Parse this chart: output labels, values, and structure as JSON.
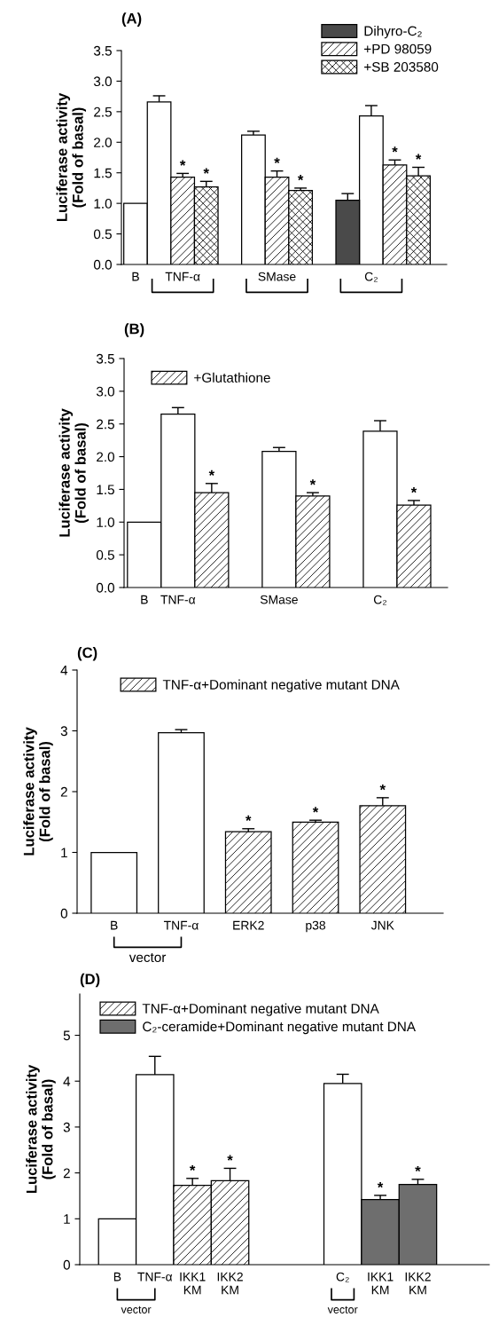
{
  "chart_data": [
    {
      "type": "bar",
      "title": "(A)",
      "ylabel": "Luciferase activity\n(Fold of basal)",
      "categories": [
        "B",
        null,
        "TNF-α",
        null,
        null,
        null,
        "SMase",
        null,
        null,
        null,
        "C₂",
        null,
        null
      ],
      "series": [
        {
          "color": "#ffffff",
          "values": [
            1.0,
            2.66,
            null,
            null,
            null,
            2.12,
            null,
            null,
            null,
            null,
            2.43,
            null,
            null
          ],
          "errors": [
            null,
            0.1,
            null,
            null,
            null,
            0.06,
            null,
            null,
            null,
            null,
            0.17,
            null,
            null
          ]
        },
        {
          "name": "Dihyro-C₂",
          "color": "#4a4a4a",
          "values": [
            null,
            null,
            null,
            null,
            null,
            null,
            null,
            null,
            null,
            1.05,
            null,
            null,
            null
          ],
          "errors": [
            null,
            null,
            null,
            null,
            null,
            null,
            null,
            null,
            null,
            0.11,
            null,
            null,
            null
          ]
        },
        {
          "name": "+PD 98059",
          "color": "#000000",
          "values": [
            null,
            null,
            1.43,
            null,
            null,
            null,
            1.43,
            null,
            null,
            null,
            null,
            1.63,
            null
          ],
          "errors": [
            null,
            null,
            0.06,
            null,
            null,
            null,
            0.1,
            null,
            null,
            null,
            null,
            0.08,
            null
          ],
          "value_labels": [
            null,
            null,
            "*",
            null,
            null,
            null,
            "*",
            null,
            null,
            null,
            null,
            "*",
            null
          ]
        },
        {
          "name": "+SB 203580",
          "color": "#000000",
          "values": [
            null,
            null,
            null,
            1.27,
            null,
            null,
            null,
            1.21,
            null,
            null,
            null,
            null,
            1.45
          ],
          "errors": [
            null,
            null,
            null,
            0.09,
            null,
            null,
            null,
            0.04,
            null,
            null,
            null,
            null,
            0.14
          ],
          "value_labels": [
            null,
            null,
            null,
            "*",
            null,
            null,
            null,
            "*",
            null,
            null,
            null,
            null,
            "*"
          ]
        }
      ],
      "ylim": [
        0,
        3.5
      ],
      "yticks": [
        {
          "value": 0,
          "label": "0.0"
        },
        0.5,
        {
          "value": 1,
          "label": "1.0"
        },
        1.5,
        {
          "value": 2,
          "label": "2.0"
        },
        2.5,
        {
          "value": 3,
          "label": "3.0"
        },
        3.5
      ],
      "legend": "top right"
    },
    {
      "type": "bar",
      "title": "(B)",
      "ylabel": "Luciferase activity\n(Fold of basal)",
      "categories": [
        "B",
        "TNF-α",
        null,
        null,
        "SMase",
        null,
        null,
        "C₂",
        null
      ],
      "series": [
        {
          "color": "#ffffff",
          "values": [
            1.0,
            2.65,
            null,
            null,
            2.08,
            null,
            null,
            2.39,
            null
          ],
          "errors": [
            null,
            0.1,
            null,
            null,
            0.06,
            null,
            null,
            0.16,
            null
          ]
        },
        {
          "name": "+Glutathione",
          "color": "#000000",
          "values": [
            null,
            null,
            1.45,
            null,
            null,
            1.4,
            null,
            null,
            1.26
          ],
          "errors": [
            null,
            null,
            0.14,
            null,
            null,
            0.05,
            null,
            null,
            0.07
          ],
          "value_labels": [
            null,
            null,
            "*",
            null,
            null,
            "*",
            null,
            null,
            "*"
          ]
        }
      ],
      "ylim": [
        0,
        3.5
      ],
      "yticks": [
        {
          "value": 0,
          "label": "0.0"
        },
        0.5,
        {
          "value": 1,
          "label": "1.0"
        },
        1.5,
        {
          "value": 2,
          "label": "2.0"
        },
        2.5,
        {
          "value": 3,
          "label": "3.0"
        },
        3.5
      ],
      "legend": "top left"
    },
    {
      "type": "bar",
      "title": "(C)",
      "ylabel": "Luciferase activity\n(Fold of basal)",
      "categories": [
        "B",
        "TNF-α",
        "ERK2",
        "p38",
        "JNK"
      ],
      "series": [
        {
          "color": "#ffffff",
          "values": [
            1.0,
            2.97,
            null,
            null,
            null
          ],
          "errors": [
            null,
            0.05,
            null,
            null,
            null
          ]
        },
        {
          "name": "TNF-α+Dominant negative mutant DNA",
          "color": "#000000",
          "values": [
            null,
            null,
            1.34,
            1.5,
            1.77
          ],
          "errors": [
            null,
            null,
            0.05,
            0.03,
            0.13
          ],
          "value_labels": [
            null,
            null,
            "*",
            "*",
            "*"
          ]
        }
      ],
      "ylim": [
        0,
        4
      ],
      "yticks": [
        0,
        1,
        2,
        3,
        4
      ],
      "annotations": [
        "vector"
      ],
      "legend": "top"
    },
    {
      "type": "bar",
      "title": "(D)",
      "ylabel": "Luciferase activity\n(Fold of basal)",
      "categories": [
        "B",
        "TNF-α",
        "IKK1\nKM",
        "IKK2\nKM",
        null,
        null,
        "C₂",
        "IKK1\nKM",
        "IKK2\nKM"
      ],
      "series": [
        {
          "color": "#ffffff",
          "values": [
            1.0,
            4.14,
            null,
            null,
            null,
            null,
            3.95,
            null,
            null
          ],
          "errors": [
            null,
            0.4,
            null,
            null,
            null,
            null,
            0.2,
            null,
            null
          ]
        },
        {
          "name": "TNF-α+Dominant negative mutant DNA",
          "color": "#000000",
          "values": [
            null,
            null,
            1.73,
            1.83,
            null,
            null,
            null,
            null,
            null
          ],
          "errors": [
            null,
            null,
            0.15,
            0.27,
            null,
            null,
            null,
            null,
            null
          ],
          "value_labels": [
            null,
            null,
            "*",
            "*",
            null,
            null,
            null,
            null,
            null
          ]
        },
        {
          "name": "C₂-ceramide+Dominant negative mutant DNA",
          "color": "#6e6e6e",
          "values": [
            null,
            null,
            null,
            null,
            null,
            null,
            null,
            1.42,
            1.75
          ],
          "errors": [
            null,
            null,
            null,
            null,
            null,
            null,
            null,
            0.09,
            0.11
          ],
          "value_labels": [
            null,
            null,
            null,
            null,
            null,
            null,
            null,
            "*",
            "*"
          ]
        }
      ],
      "ylim": [
        0,
        5.9
      ],
      "yticks": [
        0,
        1,
        2,
        3,
        4,
        5
      ],
      "annotations": [
        "vector",
        "vector"
      ],
      "legend": "top left"
    }
  ]
}
